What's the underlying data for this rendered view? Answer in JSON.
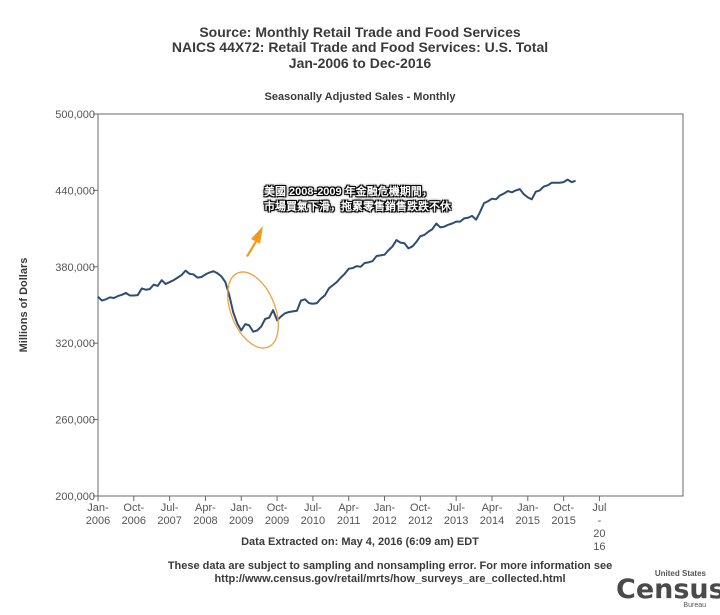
{
  "header": {
    "title_line1": "Source: Monthly Retail Trade and Food Services",
    "title_line2": "NAICS 44X72: Retail Trade and Food Services: U.S. Total",
    "title_line3": "Jan-2006 to Dec-2016",
    "subtitle": "Seasonally Adjusted Sales - Monthly"
  },
  "annotation": {
    "line1": "美國 2008-2009 年金融危機期間，",
    "line2": "市場買氣下滑，拖累零售銷售跌跌不休",
    "arrow_color": "#f39a1d",
    "ellipse_color": "#f0a040"
  },
  "footer": {
    "extract_note": "Data Extracted on: May 4, 2016 (6:09 am) EDT",
    "note_line1": "These data are subject to sampling and nonsampling error. For more information see",
    "note_line2": "http://www.census.gov/retail/mrts/how_surveys_are_collected.html",
    "logo_top": "United States",
    "logo_main": "Census",
    "logo_bottom": "Bureau"
  },
  "chart_data": {
    "type": "line",
    "title": "Source: Monthly Retail Trade and Food Services",
    "subtitle": "Seasonally Adjusted Sales - Monthly",
    "ylabel": "Millions of Dollars",
    "xlabel": "",
    "ylim": [
      200000,
      500000
    ],
    "yticks": [
      200000,
      260000,
      320000,
      380000,
      440000,
      500000
    ],
    "ytick_labels": [
      "200,000",
      "260,000",
      "320,000",
      "380,000",
      "440,000",
      "500,000"
    ],
    "xtick_labels": [
      [
        "Jan-",
        "2006"
      ],
      [
        "Oct-",
        "2006"
      ],
      [
        "Jul-",
        "2007"
      ],
      [
        "Apr-",
        "2008"
      ],
      [
        "Jan-",
        "2009"
      ],
      [
        "Oct-",
        "2009"
      ],
      [
        "Jul-",
        "2010"
      ],
      [
        "Apr-",
        "2011"
      ],
      [
        "Jan-",
        "2012"
      ],
      [
        "Oct-",
        "2012"
      ],
      [
        "Jul-",
        "2013"
      ],
      [
        "Apr-",
        "2014"
      ],
      [
        "Jan-",
        "2015"
      ],
      [
        "Oct-",
        "2015"
      ],
      [
        "Jul",
        "-",
        "20",
        "16"
      ]
    ],
    "grid": false,
    "line_color": "#2e4d73",
    "series": [
      {
        "values": [
          356500,
          353500,
          354500,
          356000,
          355500,
          357000,
          358000,
          359500,
          357500,
          357500,
          357800,
          363000,
          362000,
          362500,
          366000,
          365000,
          369500,
          366500,
          368000,
          369500,
          371500,
          373500,
          377000,
          374500,
          374000,
          371500,
          372000,
          374000,
          375500,
          376500,
          375000,
          372500,
          368000,
          357500,
          344000,
          335500,
          330000,
          335000,
          334000,
          329000,
          330000,
          333000,
          339000,
          340000,
          346000,
          338000,
          341000,
          343500,
          344500,
          345000,
          345500,
          353500,
          354500,
          351500,
          351000,
          351500,
          355000,
          357500,
          363000,
          365500,
          368000,
          371500,
          374500,
          378500,
          379000,
          380500,
          380000,
          383000,
          383500,
          384500,
          388500,
          389000,
          389500,
          393000,
          396000,
          401000,
          399000,
          398500,
          394500,
          396000,
          399500,
          404000,
          405000,
          407500,
          409500,
          414000,
          411000,
          411500,
          413000,
          414000,
          415500,
          415500,
          418000,
          418500,
          420000,
          417000,
          423000,
          430000,
          431500,
          433500,
          433000,
          436000,
          437500,
          439500,
          438500,
          440000,
          441000,
          437000,
          434500,
          433000,
          439000,
          440000,
          443000,
          444000,
          446000,
          446000,
          446000,
          446500,
          448500,
          446500,
          447500
        ]
      }
    ]
  }
}
